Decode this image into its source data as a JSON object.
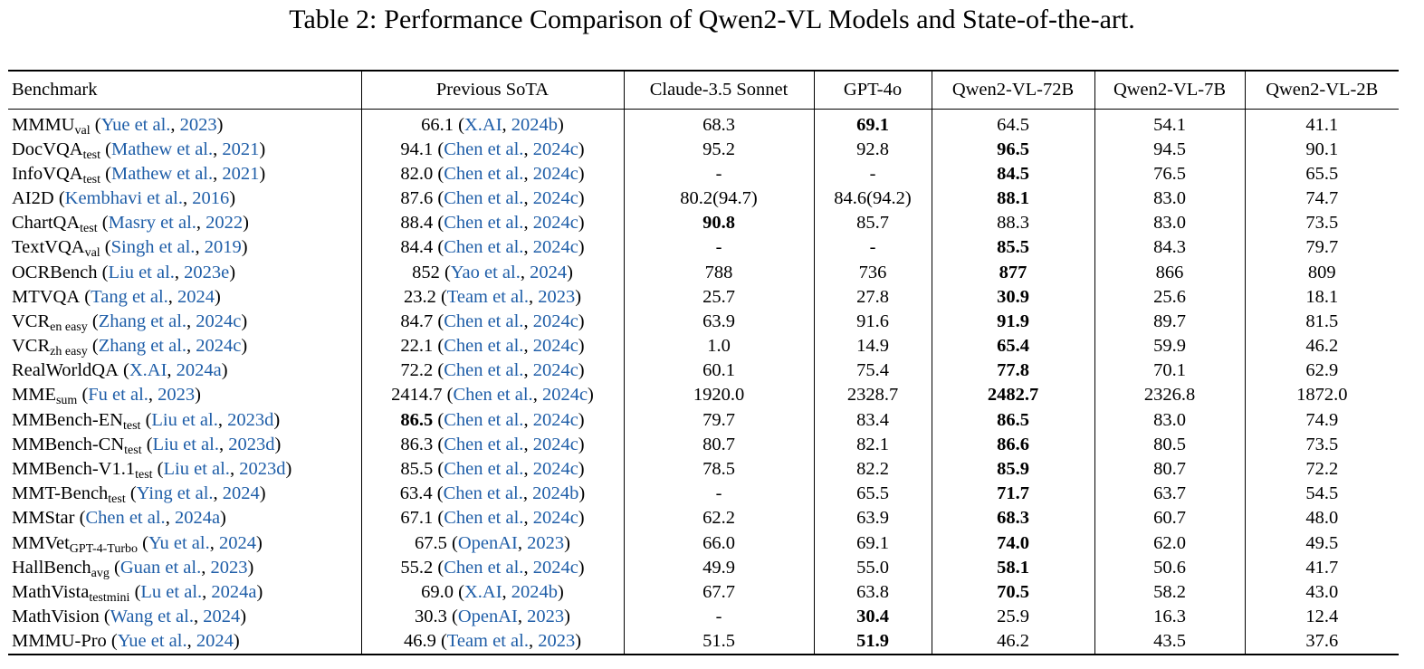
{
  "caption": {
    "label": "Table 2:",
    "text": "Performance Comparison of Qwen2-VL Models and State-of-the-art."
  },
  "columns": [
    "Benchmark",
    "Previous SoTA",
    "Claude-3.5 Sonnet",
    "GPT-4o",
    "Qwen2-VL-72B",
    "Qwen2-VL-7B",
    "Qwen2-VL-2B"
  ],
  "rows": [
    {
      "bench": "MMMU",
      "sub": "val",
      "ref_authors": "Yue et al.",
      "ref_year": "2023",
      "sota_value": "66.1",
      "sota_authors": "X.AI",
      "sota_year": "2024b",
      "vals": [
        "68.3",
        "69.1",
        "64.5",
        "54.1",
        "41.1"
      ],
      "bold": [
        false,
        true,
        false,
        false,
        false
      ],
      "sota_bold": false
    },
    {
      "bench": "DocVQA",
      "sub": "test",
      "ref_authors": "Mathew et al.",
      "ref_year": "2021",
      "sota_value": "94.1",
      "sota_authors": "Chen et al.",
      "sota_year": "2024c",
      "vals": [
        "95.2",
        "92.8",
        "96.5",
        "94.5",
        "90.1"
      ],
      "bold": [
        false,
        false,
        true,
        false,
        false
      ],
      "sota_bold": false
    },
    {
      "bench": "InfoVQA",
      "sub": "test",
      "ref_authors": "Mathew et al.",
      "ref_year": "2021",
      "sota_value": "82.0",
      "sota_authors": "Chen et al.",
      "sota_year": "2024c",
      "vals": [
        "-",
        "-",
        "84.5",
        "76.5",
        "65.5"
      ],
      "bold": [
        false,
        false,
        true,
        false,
        false
      ],
      "sota_bold": false
    },
    {
      "bench": "AI2D",
      "sub": "",
      "ref_authors": "Kembhavi et al.",
      "ref_year": "2016",
      "sota_value": "87.6",
      "sota_authors": "Chen et al.",
      "sota_year": "2024c",
      "vals": [
        "80.2(94.7)",
        "84.6(94.2)",
        "88.1",
        "83.0",
        "74.7"
      ],
      "bold": [
        false,
        false,
        true,
        false,
        false
      ],
      "sota_bold": false
    },
    {
      "bench": "ChartQA",
      "sub": "test",
      "ref_authors": "Masry et al.",
      "ref_year": "2022",
      "sota_value": "88.4",
      "sota_authors": "Chen et al.",
      "sota_year": "2024c",
      "vals": [
        "90.8",
        "85.7",
        "88.3",
        "83.0",
        "73.5"
      ],
      "bold": [
        true,
        false,
        false,
        false,
        false
      ],
      "sota_bold": false
    },
    {
      "bench": "TextVQA",
      "sub": "val",
      "ref_authors": "Singh et al.",
      "ref_year": "2019",
      "sota_value": "84.4",
      "sota_authors": "Chen et al.",
      "sota_year": "2024c",
      "vals": [
        "-",
        "-",
        "85.5",
        "84.3",
        "79.7"
      ],
      "bold": [
        false,
        false,
        true,
        false,
        false
      ],
      "sota_bold": false
    },
    {
      "bench": "OCRBench",
      "sub": "",
      "ref_authors": "Liu et al.",
      "ref_year": "2023e",
      "sota_value": "852",
      "sota_authors": "Yao et al.",
      "sota_year": "2024",
      "vals": [
        "788",
        "736",
        "877",
        "866",
        "809"
      ],
      "bold": [
        false,
        false,
        true,
        false,
        false
      ],
      "sota_bold": false
    },
    {
      "bench": "MTVQA",
      "sub": "",
      "ref_authors": "Tang et al.",
      "ref_year": "2024",
      "sota_value": "23.2",
      "sota_authors": "Team et al.",
      "sota_year": "2023",
      "vals": [
        "25.7",
        "27.8",
        "30.9",
        "25.6",
        "18.1"
      ],
      "bold": [
        false,
        false,
        true,
        false,
        false
      ],
      "sota_bold": false
    },
    {
      "bench": "VCR",
      "sub": "en easy",
      "ref_authors": "Zhang et al.",
      "ref_year": "2024c",
      "sota_value": "84.7",
      "sota_authors": "Chen et al.",
      "sota_year": "2024c",
      "vals": [
        "63.9",
        "91.6",
        "91.9",
        "89.7",
        "81.5"
      ],
      "bold": [
        false,
        false,
        true,
        false,
        false
      ],
      "sota_bold": false
    },
    {
      "bench": "VCR",
      "sub": "zh easy",
      "ref_authors": "Zhang et al.",
      "ref_year": "2024c",
      "sota_value": "22.1",
      "sota_authors": "Chen et al.",
      "sota_year": "2024c",
      "vals": [
        "1.0",
        "14.9",
        "65.4",
        "59.9",
        "46.2"
      ],
      "bold": [
        false,
        false,
        true,
        false,
        false
      ],
      "sota_bold": false
    },
    {
      "bench": "RealWorldQA",
      "sub": "",
      "ref_authors": "X.AI",
      "ref_year": "2024a",
      "sota_value": "72.2",
      "sota_authors": "Chen et al.",
      "sota_year": "2024c",
      "vals": [
        "60.1",
        "75.4",
        "77.8",
        "70.1",
        "62.9"
      ],
      "bold": [
        false,
        false,
        true,
        false,
        false
      ],
      "sota_bold": false
    },
    {
      "bench": "MME",
      "sub": "sum",
      "ref_authors": "Fu et al.",
      "ref_year": "2023",
      "sota_value": "2414.7",
      "sota_authors": "Chen et al.",
      "sota_year": "2024c",
      "vals": [
        "1920.0",
        "2328.7",
        "2482.7",
        "2326.8",
        "1872.0"
      ],
      "bold": [
        false,
        false,
        true,
        false,
        false
      ],
      "sota_bold": false
    },
    {
      "bench": "MMBench-EN",
      "sub": "test",
      "ref_authors": "Liu et al.",
      "ref_year": "2023d",
      "sota_value": "86.5",
      "sota_authors": "Chen et al.",
      "sota_year": "2024c",
      "vals": [
        "79.7",
        "83.4",
        "86.5",
        "83.0",
        "74.9"
      ],
      "bold": [
        false,
        false,
        true,
        false,
        false
      ],
      "sota_bold": true
    },
    {
      "bench": "MMBench-CN",
      "sub": "test",
      "ref_authors": "Liu et al.",
      "ref_year": "2023d",
      "sota_value": "86.3",
      "sota_authors": "Chen et al.",
      "sota_year": "2024c",
      "vals": [
        "80.7",
        "82.1",
        "86.6",
        "80.5",
        "73.5"
      ],
      "bold": [
        false,
        false,
        true,
        false,
        false
      ],
      "sota_bold": false
    },
    {
      "bench": "MMBench-V1.1",
      "sub": "test",
      "ref_authors": "Liu et al.",
      "ref_year": "2023d",
      "sota_value": "85.5",
      "sota_authors": "Chen et al.",
      "sota_year": "2024c",
      "vals": [
        "78.5",
        "82.2",
        "85.9",
        "80.7",
        "72.2"
      ],
      "bold": [
        false,
        false,
        true,
        false,
        false
      ],
      "sota_bold": false
    },
    {
      "bench": "MMT-Bench",
      "sub": "test",
      "ref_authors": "Ying et al.",
      "ref_year": "2024",
      "sota_value": "63.4",
      "sota_authors": "Chen et al.",
      "sota_year": "2024b",
      "vals": [
        "-",
        "65.5",
        "71.7",
        "63.7",
        "54.5"
      ],
      "bold": [
        false,
        false,
        true,
        false,
        false
      ],
      "sota_bold": false
    },
    {
      "bench": "MMStar",
      "sub": "",
      "ref_authors": "Chen et al.",
      "ref_year": "2024a",
      "sota_value": "67.1",
      "sota_authors": "Chen et al.",
      "sota_year": "2024c",
      "vals": [
        "62.2",
        "63.9",
        "68.3",
        "60.7",
        "48.0"
      ],
      "bold": [
        false,
        false,
        true,
        false,
        false
      ],
      "sota_bold": false
    },
    {
      "bench": "MMVet",
      "sub": "GPT-4-Turbo",
      "ref_authors": "Yu et al.",
      "ref_year": "2024",
      "sota_value": "67.5",
      "sota_authors": "OpenAI",
      "sota_year": "2023",
      "vals": [
        "66.0",
        "69.1",
        "74.0",
        "62.0",
        "49.5"
      ],
      "bold": [
        false,
        false,
        true,
        false,
        false
      ],
      "sota_bold": false
    },
    {
      "bench": "HallBench",
      "sub": "avg",
      "ref_authors": "Guan et al.",
      "ref_year": "2023",
      "sota_value": "55.2",
      "sota_authors": "Chen et al.",
      "sota_year": "2024c",
      "vals": [
        "49.9",
        "55.0",
        "58.1",
        "50.6",
        "41.7"
      ],
      "bold": [
        false,
        false,
        true,
        false,
        false
      ],
      "sota_bold": false
    },
    {
      "bench": "MathVista",
      "sub": "testmini",
      "ref_authors": "Lu et al.",
      "ref_year": "2024a",
      "sota_value": "69.0",
      "sota_authors": "X.AI",
      "sota_year": "2024b",
      "vals": [
        "67.7",
        "63.8",
        "70.5",
        "58.2",
        "43.0"
      ],
      "bold": [
        false,
        false,
        true,
        false,
        false
      ],
      "sota_bold": false
    },
    {
      "bench": "MathVision",
      "sub": "",
      "ref_authors": "Wang et al.",
      "ref_year": "2024",
      "sota_value": "30.3",
      "sota_authors": "OpenAI",
      "sota_year": "2023",
      "vals": [
        "-",
        "30.4",
        "25.9",
        "16.3",
        "12.4"
      ],
      "bold": [
        false,
        true,
        false,
        false,
        false
      ],
      "sota_bold": false
    },
    {
      "bench": "MMMU-Pro",
      "sub": "",
      "ref_authors": "Yue et al.",
      "ref_year": "2024",
      "sota_value": "46.9",
      "sota_authors": "Team et al.",
      "sota_year": "2023",
      "vals": [
        "51.5",
        "51.9",
        "46.2",
        "43.5",
        "37.6"
      ],
      "bold": [
        false,
        true,
        false,
        false,
        false
      ],
      "sota_bold": false
    }
  ]
}
